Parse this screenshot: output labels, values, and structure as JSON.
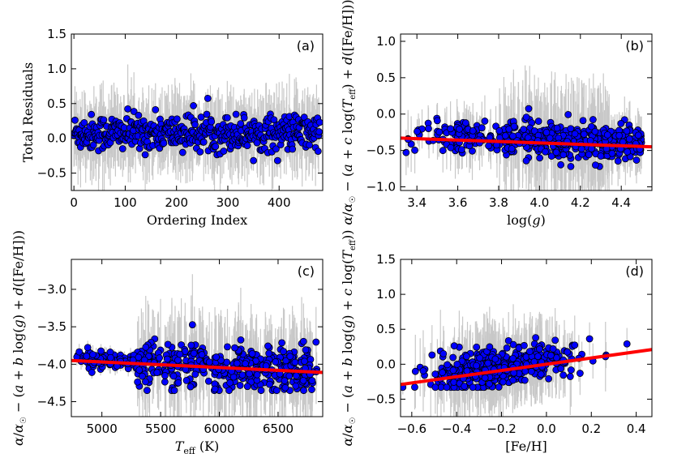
{
  "chart_data": [
    {
      "type": "scatter",
      "panel_label": "(a)",
      "title": "",
      "xlabel": "Ordering Index",
      "ylabel": "Total Residuals",
      "xlim": [
        -5,
        485
      ],
      "ylim": [
        -0.75,
        1.5
      ],
      "xticks": [
        0,
        100,
        200,
        300,
        400
      ],
      "yticks": [
        -0.5,
        0.0,
        0.5,
        1.0,
        1.5
      ],
      "xtick_labels": [
        "0",
        "100",
        "200",
        "300",
        "400"
      ],
      "ytick_labels": [
        "−0.5",
        "0.0",
        "0.5",
        "1.0",
        "1.5"
      ],
      "n_points": 480,
      "points_note_range": [
        -0.3,
        0.65
      ],
      "fit_line": null,
      "marker_color": "#0000ff",
      "errorbar_color": "#c8c8c8"
    },
    {
      "type": "scatter",
      "panel_label": "(b)",
      "title": "",
      "xlabel": "log(g)",
      "ylabel": "α/α☉ − (a + c log(T_eff) + d([Fe/H]))",
      "xlim": [
        3.32,
        4.55
      ],
      "ylim": [
        -1.05,
        1.1
      ],
      "xticks": [
        3.4,
        3.6,
        3.8,
        4.0,
        4.2,
        4.4
      ],
      "yticks": [
        -1.0,
        -0.5,
        0.0,
        0.5,
        1.0
      ],
      "xtick_labels": [
        "3.4",
        "3.6",
        "3.8",
        "4.0",
        "4.2",
        "4.4"
      ],
      "ytick_labels": [
        "−1.0",
        "−0.5",
        "0.0",
        "0.5",
        "1.0"
      ],
      "n_points": 480,
      "fit_line": {
        "x": [
          3.32,
          4.55
        ],
        "y": [
          -0.33,
          -0.45
        ],
        "color": "#ff0000"
      },
      "marker_color": "#0000ff",
      "errorbar_color": "#c8c8c8"
    },
    {
      "type": "scatter",
      "panel_label": "(c)",
      "title": "",
      "xlabel": "T_eff (K)",
      "ylabel": "α/α☉ − (a + b log(g) + d([Fe/H]))",
      "xlim": [
        4740,
        6880
      ],
      "ylim": [
        -4.7,
        -2.6
      ],
      "xticks": [
        5000,
        5500,
        6000,
        6500
      ],
      "yticks": [
        -4.5,
        -4.0,
        -3.5,
        -3.0
      ],
      "xtick_labels": [
        "5000",
        "5500",
        "6000",
        "6500"
      ],
      "ytick_labels": [
        "−4.5",
        "−4.0",
        "−3.5",
        "−3.0"
      ],
      "n_points": 480,
      "fit_line": {
        "x": [
          4740,
          6880
        ],
        "y": [
          -3.95,
          -4.11
        ],
        "color": "#ff0000"
      },
      "marker_color": "#0000ff",
      "errorbar_color": "#c8c8c8"
    },
    {
      "type": "scatter",
      "panel_label": "(d)",
      "title": "",
      "xlabel": "[Fe/H]",
      "ylabel": "α/α☉ − (a + b log(g) + c log(T_eff))",
      "xlim": [
        -0.65,
        0.47
      ],
      "ylim": [
        -0.75,
        1.5
      ],
      "xticks": [
        -0.6,
        -0.4,
        -0.2,
        0.0,
        0.2,
        0.4
      ],
      "yticks": [
        -0.5,
        0.0,
        0.5,
        1.0,
        1.5
      ],
      "xtick_labels": [
        "−0.6",
        "−0.4",
        "−0.2",
        "0.0",
        "0.2",
        "0.4"
      ],
      "ytick_labels": [
        "−0.5",
        "0.0",
        "0.5",
        "1.0",
        "1.5"
      ],
      "n_points": 480,
      "fit_line": {
        "x": [
          -0.65,
          0.47
        ],
        "y": [
          -0.29,
          0.21
        ],
        "color": "#ff0000"
      },
      "marker_color": "#0000ff",
      "errorbar_color": "#c8c8c8"
    }
  ]
}
